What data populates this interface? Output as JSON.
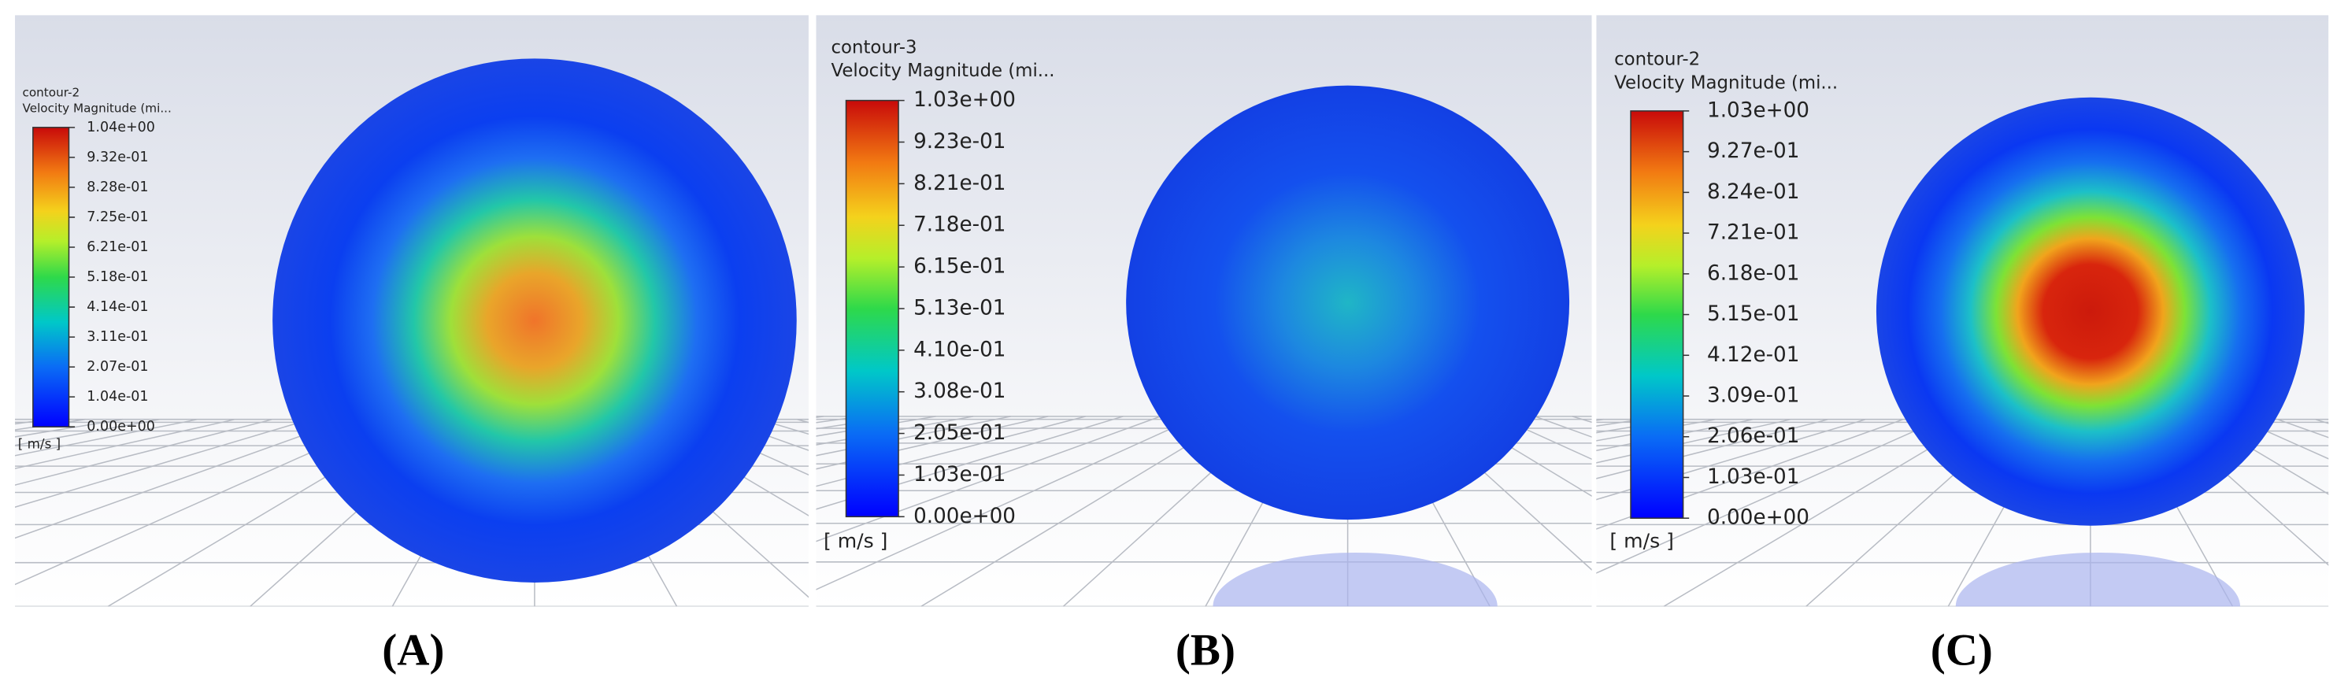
{
  "panels": [
    {
      "letter": "(A)",
      "contour": "contour-2",
      "variable": "Velocity Magnitude (mi...",
      "ticks": [
        "1.04e+00",
        "9.32e-01",
        "8.28e-01",
        "7.25e-01",
        "6.21e-01",
        "5.18e-01",
        "4.14e-01",
        "3.11e-01",
        "2.07e-01",
        "1.04e-01",
        "0.00e+00"
      ],
      "unit": "[ m/s ]"
    },
    {
      "letter": "(B)",
      "contour": "contour-3",
      "variable": "Velocity Magnitude (mi...",
      "ticks": [
        "1.03e+00",
        "9.23e-01",
        "8.21e-01",
        "7.18e-01",
        "6.15e-01",
        "5.13e-01",
        "4.10e-01",
        "3.08e-01",
        "2.05e-01",
        "1.03e-01",
        "0.00e+00"
      ],
      "unit": "[ m/s ]"
    },
    {
      "letter": "(C)",
      "contour": "contour-2",
      "variable": "Velocity Magnitude (mi...",
      "ticks": [
        "1.03e+00",
        "9.27e-01",
        "8.24e-01",
        "7.21e-01",
        "6.18e-01",
        "5.15e-01",
        "4.12e-01",
        "3.09e-01",
        "2.06e-01",
        "1.03e-01",
        "0.00e+00"
      ],
      "unit": "[ m/s ]"
    }
  ]
}
